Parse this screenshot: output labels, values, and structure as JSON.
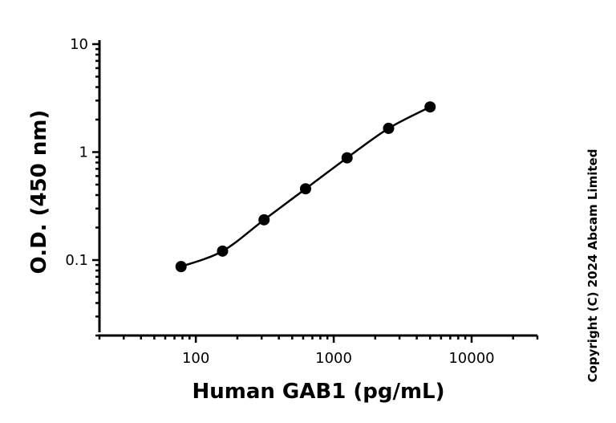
{
  "chart_data": {
    "type": "scatter",
    "title": "",
    "xlabel": "Human GAB1 (pg/mL)",
    "ylabel": "O.D. (450 nm)",
    "x_scale": "log",
    "y_scale": "log",
    "xlim": [
      20,
      30000
    ],
    "ylim": [
      0.02,
      10
    ],
    "x_ticks": [
      {
        "value": 100,
        "label": "100"
      },
      {
        "value": 1000,
        "label": "1000"
      },
      {
        "value": 10000,
        "label": "10000"
      }
    ],
    "y_ticks": [
      {
        "value": 0.1,
        "label": "0.1"
      },
      {
        "value": 1,
        "label": "1"
      },
      {
        "value": 10,
        "label": "10"
      }
    ],
    "grid": false,
    "legend": "none",
    "series": [
      {
        "x": [
          78.125,
          156.25,
          312.5,
          625,
          1250,
          2500,
          5000
        ],
        "y": [
          0.087,
          0.121,
          0.236,
          0.457,
          0.885,
          1.66,
          2.62
        ],
        "fit_curve": true,
        "marker": "filled-circle",
        "color": "#000000"
      }
    ]
  },
  "copyright": "Copyright (C) 2024 Abcam Limited"
}
